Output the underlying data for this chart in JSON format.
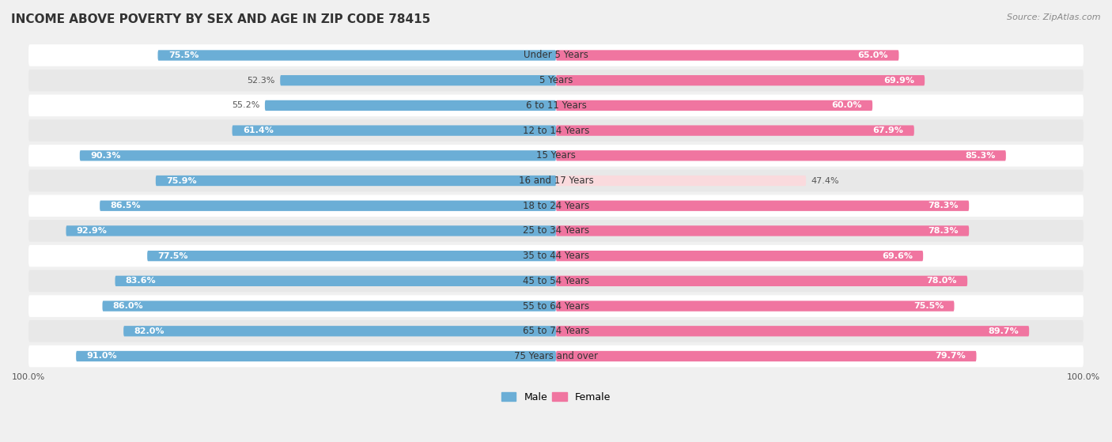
{
  "title": "INCOME ABOVE POVERTY BY SEX AND AGE IN ZIP CODE 78415",
  "source": "Source: ZipAtlas.com",
  "categories": [
    "Under 5 Years",
    "5 Years",
    "6 to 11 Years",
    "12 to 14 Years",
    "15 Years",
    "16 and 17 Years",
    "18 to 24 Years",
    "25 to 34 Years",
    "35 to 44 Years",
    "45 to 54 Years",
    "55 to 64 Years",
    "65 to 74 Years",
    "75 Years and over"
  ],
  "male_values": [
    75.5,
    52.3,
    55.2,
    61.4,
    90.3,
    75.9,
    86.5,
    92.9,
    77.5,
    83.6,
    86.0,
    82.0,
    91.0
  ],
  "female_values": [
    65.0,
    69.9,
    60.0,
    67.9,
    85.3,
    47.4,
    78.3,
    78.3,
    69.6,
    78.0,
    75.5,
    89.7,
    79.7
  ],
  "male_color": "#6baed6",
  "female_color": "#f075a0",
  "female_light_color": "#fadadd",
  "background_color": "#f0f0f0",
  "row_light_color": "#ffffff",
  "row_dark_color": "#e8e8e8",
  "title_fontsize": 11,
  "label_fontsize": 8.5,
  "value_fontsize": 8,
  "legend_fontsize": 9,
  "axis_fontsize": 8
}
